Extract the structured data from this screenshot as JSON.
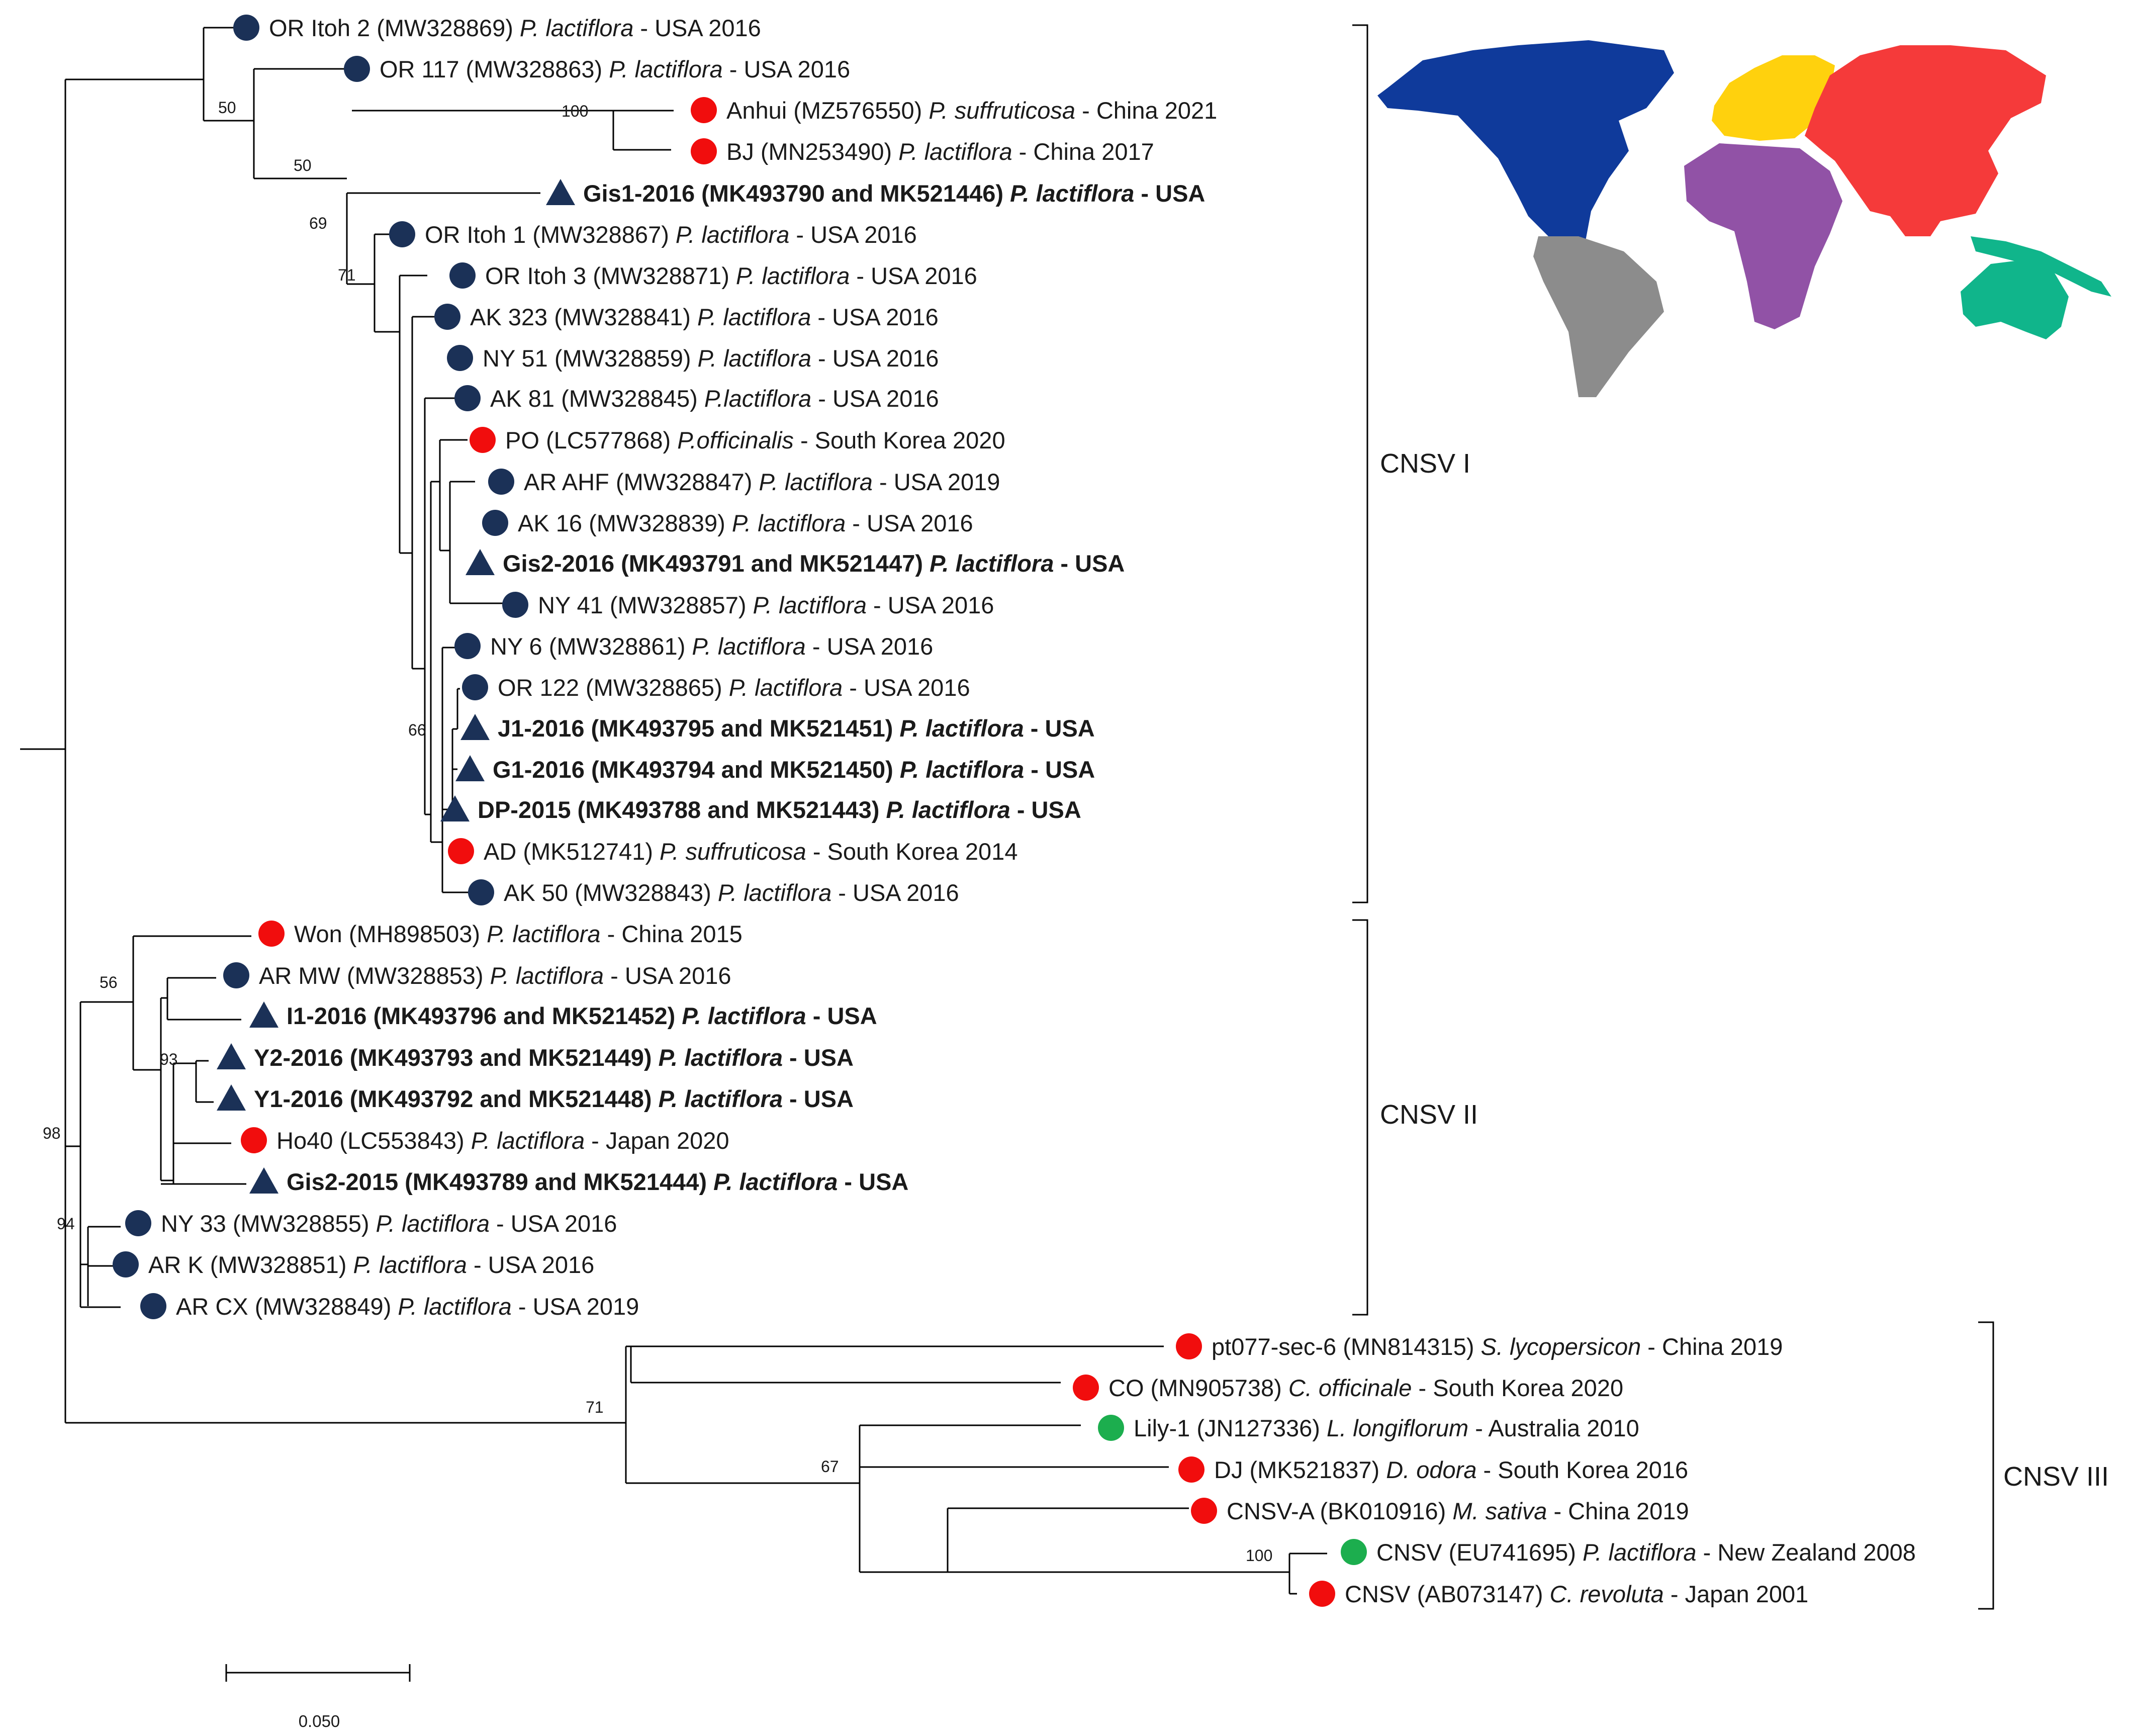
{
  "colors": {
    "navy": "#1b3157",
    "red": "#f10d0d",
    "green": "#1cae4e",
    "na_blue": "#0f3a9b",
    "sa_gray": "#8c8c8c",
    "eu_yellow": "#ffd10d",
    "asia_red": "#f53a3a",
    "af_purple": "#9152a6",
    "oc_teal": "#10b58b"
  },
  "taxa": [
    {
      "id": "t1",
      "pre": "OR Itoh 2 (MW328869) ",
      "sp": "P. lactiflora",
      "post": " - USA 2016",
      "marker": "circle",
      "color": "navy",
      "bold": false
    },
    {
      "id": "t2",
      "pre": "OR 117 (MW328863) ",
      "sp": "P. lactiflora",
      "post": " - USA 2016",
      "marker": "circle",
      "color": "navy",
      "bold": false
    },
    {
      "id": "t3",
      "pre": "Anhui (MZ576550) ",
      "sp": "P. suffruticosa",
      "post": " - China 2021",
      "marker": "circle",
      "color": "red",
      "bold": false
    },
    {
      "id": "t4",
      "pre": "BJ (MN253490) ",
      "sp": "P. lactiflora",
      "post": " - China 2017",
      "marker": "circle",
      "color": "red",
      "bold": false
    },
    {
      "id": "t5",
      "pre": "Gis1-2016 (MK493790 and MK521446) ",
      "sp": "P. lactiflora",
      "post": " - USA",
      "marker": "triangle",
      "color": "navy",
      "bold": true
    },
    {
      "id": "t6",
      "pre": "OR Itoh 1 (MW328867) ",
      "sp": "P. lactiflora",
      "post": " - USA 2016",
      "marker": "circle",
      "color": "navy",
      "bold": false
    },
    {
      "id": "t7",
      "pre": "OR Itoh 3 (MW328871) ",
      "sp": "P. lactiflora",
      "post": " - USA 2016",
      "marker": "circle",
      "color": "navy",
      "bold": false
    },
    {
      "id": "t8",
      "pre": "AK 323 (MW328841) ",
      "sp": "P. lactiflora",
      "post": " - USA 2016",
      "marker": "circle",
      "color": "navy",
      "bold": false
    },
    {
      "id": "t9",
      "pre": "NY 51 (MW328859) ",
      "sp": "P. lactiflora",
      "post": " - USA 2016",
      "marker": "circle",
      "color": "navy",
      "bold": false
    },
    {
      "id": "t10",
      "pre": "AK 81 (MW328845) ",
      "sp": "P.lactiflora",
      "post": " - USA 2016",
      "marker": "circle",
      "color": "navy",
      "bold": false
    },
    {
      "id": "t11",
      "pre": "PO (LC577868) ",
      "sp": "P.officinalis",
      "post": " - South Korea 2020",
      "marker": "circle",
      "color": "red",
      "bold": false
    },
    {
      "id": "t12",
      "pre": "AR AHF (MW328847) ",
      "sp": "P. lactiflora",
      "post": " - USA 2019",
      "marker": "circle",
      "color": "navy",
      "bold": false
    },
    {
      "id": "t13",
      "pre": "AK 16 (MW328839) ",
      "sp": "P. lactiflora",
      "post": " - USA 2016",
      "marker": "circle",
      "color": "navy",
      "bold": false
    },
    {
      "id": "t14",
      "pre": "Gis2-2016 (MK493791 and MK521447) ",
      "sp": "P. lactiflora",
      "post": " - USA",
      "marker": "triangle",
      "color": "navy",
      "bold": true
    },
    {
      "id": "t15",
      "pre": "NY 41 (MW328857) ",
      "sp": "P. lactiflora",
      "post": " - USA 2016",
      "marker": "circle",
      "color": "navy",
      "bold": false
    },
    {
      "id": "t16",
      "pre": "NY 6 (MW328861) ",
      "sp": "P. lactiflora",
      "post": " - USA 2016",
      "marker": "circle",
      "color": "navy",
      "bold": false
    },
    {
      "id": "t17",
      "pre": "OR 122 (MW328865) ",
      "sp": "P. lactiflora",
      "post": " - USA 2016",
      "marker": "circle",
      "color": "navy",
      "bold": false
    },
    {
      "id": "t18",
      "pre": "J1-2016 (MK493795 and MK521451) ",
      "sp": "P. lactiflora",
      "post": " - USA",
      "marker": "triangle",
      "color": "navy",
      "bold": true
    },
    {
      "id": "t19",
      "pre": "G1-2016 (MK493794 and MK521450) ",
      "sp": "P. lactiflora",
      "post": " - USA",
      "marker": "triangle",
      "color": "navy",
      "bold": true
    },
    {
      "id": "t20",
      "pre": "DP-2015 (MK493788 and MK521443) ",
      "sp": "P. lactiflora",
      "post": " - USA",
      "marker": "triangle",
      "color": "navy",
      "bold": true
    },
    {
      "id": "t21",
      "pre": "AD (MK512741) ",
      "sp": "P. suffruticosa",
      "post": " - South Korea 2014",
      "marker": "circle",
      "color": "red",
      "bold": false
    },
    {
      "id": "t22",
      "pre": "AK 50 (MW328843) ",
      "sp": "P. lactiflora",
      "post": " - USA 2016",
      "marker": "circle",
      "color": "navy",
      "bold": false
    },
    {
      "id": "t23",
      "pre": "Won (MH898503) ",
      "sp": "P. lactiflora",
      "post": " - China 2015",
      "marker": "circle",
      "color": "red",
      "bold": false
    },
    {
      "id": "t24",
      "pre": "AR MW (MW328853) ",
      "sp": "P. lactiflora",
      "post": " - USA 2016",
      "marker": "circle",
      "color": "navy",
      "bold": false
    },
    {
      "id": "t25",
      "pre": "I1-2016 (MK493796 and MK521452) ",
      "sp": "P. lactiflora",
      "post": " - USA",
      "marker": "triangle",
      "color": "navy",
      "bold": true
    },
    {
      "id": "t26",
      "pre": "Y2-2016 (MK493793 and MK521449) ",
      "sp": "P. lactiflora",
      "post": " - USA",
      "marker": "triangle",
      "color": "navy",
      "bold": true
    },
    {
      "id": "t27",
      "pre": "Y1-2016 (MK493792 and MK521448) ",
      "sp": "P. lactiflora",
      "post": " - USA",
      "marker": "triangle",
      "color": "navy",
      "bold": true
    },
    {
      "id": "t28",
      "pre": "Ho40 (LC553843) ",
      "sp": "P. lactiflora",
      "post": " - Japan 2020",
      "marker": "circle",
      "color": "red",
      "bold": false
    },
    {
      "id": "t29",
      "pre": "Gis2-2015 (MK493789 and MK521444) ",
      "sp": "P. lactiflora",
      "post": " - USA",
      "marker": "triangle",
      "color": "navy",
      "bold": true
    },
    {
      "id": "t30",
      "pre": "NY 33 (MW328855) ",
      "sp": "P. lactiflora",
      "post": " - USA 2016",
      "marker": "circle",
      "color": "navy",
      "bold": false
    },
    {
      "id": "t31",
      "pre": "AR K (MW328851) ",
      "sp": "P. lactiflora",
      "post": " - USA 2016",
      "marker": "circle",
      "color": "navy",
      "bold": false
    },
    {
      "id": "t32",
      "pre": "AR CX (MW328849) ",
      "sp": "P. lactiflora",
      "post": " - USA 2019",
      "marker": "circle",
      "color": "navy",
      "bold": false
    },
    {
      "id": "t33",
      "pre": "pt077-sec-6 (MN814315) ",
      "sp": "S. lycopersicon",
      "post": " - China 2019",
      "marker": "circle",
      "color": "red",
      "bold": false
    },
    {
      "id": "t34",
      "pre": "CO (MN905738) ",
      "sp": "C. officinale",
      "post": " - South Korea 2020",
      "marker": "circle",
      "color": "red",
      "bold": false
    },
    {
      "id": "t35",
      "pre": "Lily-1 (JN127336) ",
      "sp": "L. longiflorum",
      "post": " - Australia 2010",
      "marker": "circle",
      "color": "green",
      "bold": false
    },
    {
      "id": "t36",
      "pre": "DJ (MK521837) ",
      "sp": "D. odora",
      "post": " - South Korea 2016",
      "marker": "circle",
      "color": "red",
      "bold": false
    },
    {
      "id": "t37",
      "pre": "CNSV-A (BK010916) ",
      "sp": "M. sativa",
      "post": " - China 2019",
      "marker": "circle",
      "color": "red",
      "bold": false
    },
    {
      "id": "t38",
      "pre": "CNSV (EU741695) ",
      "sp": "P. lactiflora",
      "post": " - New Zealand 2008",
      "marker": "circle",
      "color": "green",
      "bold": false
    },
    {
      "id": "t39",
      "pre": "CNSV (AB073147) ",
      "sp": "C. revoluta",
      "post": " - Japan 2001",
      "marker": "circle",
      "color": "red",
      "bold": false
    }
  ],
  "bootstrap": [
    "50",
    "100",
    "50",
    "69",
    "71",
    "66",
    "56",
    "93",
    "98",
    "94",
    "71",
    "67",
    "100"
  ],
  "clades": [
    "CNSV I",
    "CNSV II",
    "CNSV III"
  ],
  "scale_bar": {
    "label": "0.050"
  }
}
